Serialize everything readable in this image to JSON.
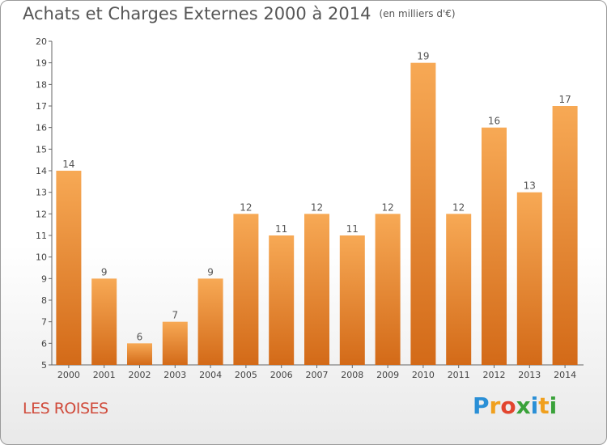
{
  "title": "Achats et Charges Externes 2000 à 2014",
  "unit": "(en milliers d'€)",
  "commune": "LES ROISES",
  "logo": "Proxiti",
  "colors": {
    "bar_top": "#f5a552",
    "bar_bottom": "#d86e1c",
    "title": "#555555",
    "commune": "#d04a3a"
  },
  "chart_data": {
    "type": "bar",
    "title": "Achats et Charges Externes 2000 à 2014",
    "unit_label": "(en milliers d'€)",
    "categories": [
      "2000",
      "2001",
      "2002",
      "2003",
      "2004",
      "2005",
      "2006",
      "2007",
      "2008",
      "2009",
      "2010",
      "2011",
      "2012",
      "2013",
      "2014"
    ],
    "values": [
      14,
      9,
      6,
      7,
      9,
      12,
      11,
      12,
      11,
      12,
      19,
      12,
      16,
      13,
      17
    ],
    "ylim": [
      5,
      20
    ],
    "yticks": [
      5,
      6,
      7,
      8,
      9,
      10,
      11,
      12,
      13,
      14,
      15,
      16,
      17,
      18,
      19,
      20
    ],
    "grid": false,
    "data_labels": true
  }
}
